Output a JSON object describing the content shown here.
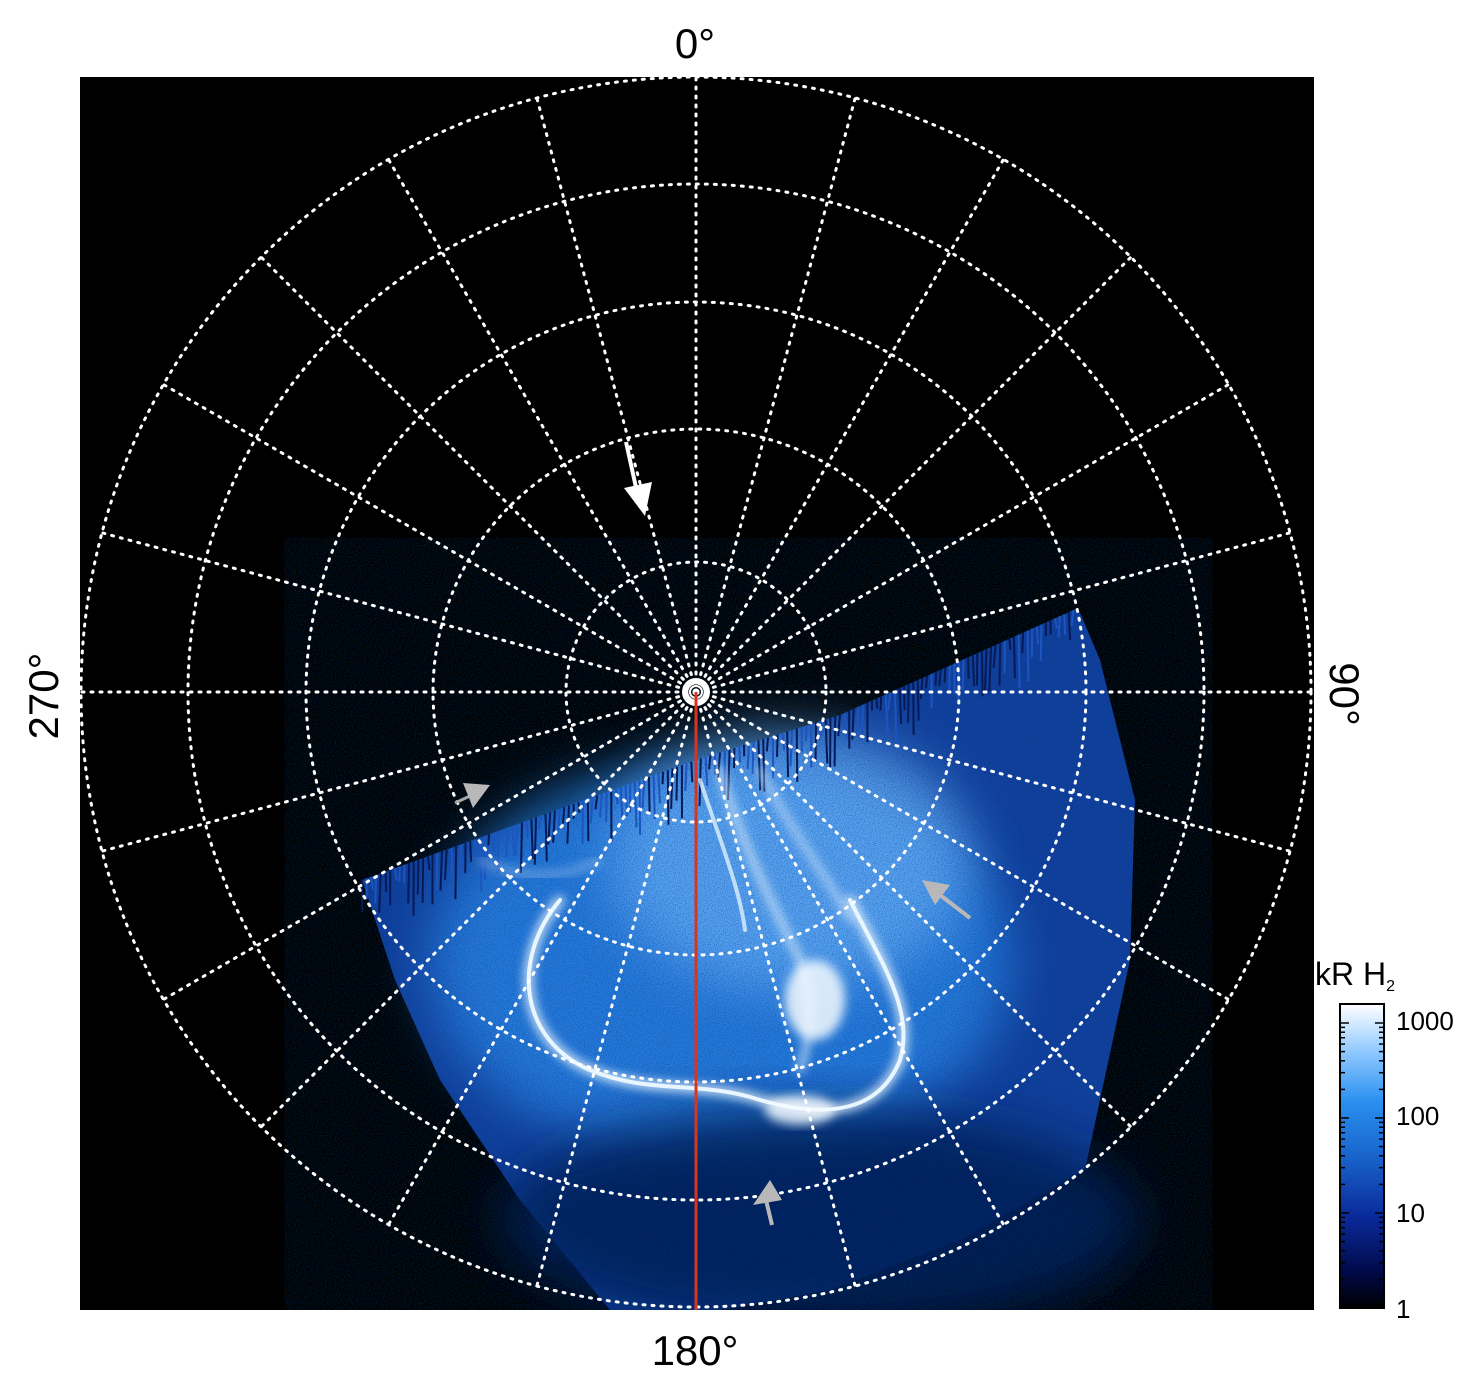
{
  "figure": {
    "orientation_labels": {
      "top": "0°",
      "bottom": "180°",
      "left": "270°",
      "right": "90°"
    },
    "colorbar": {
      "title_main": "kR H",
      "title_sub": "2",
      "ticks": [
        "1000",
        "100",
        "10",
        "1"
      ],
      "colors": [
        "#000000",
        "#000a4a",
        "#0a2a9a",
        "#1a6ad0",
        "#2a90f0",
        "#8ec8ff",
        "#ffffff"
      ]
    },
    "colors": {
      "background": "#000000",
      "grid": "#ffffff",
      "meridian_line": "#d9351e",
      "arrow_white": "#ffffff",
      "arrow_gray": "#b8b8b8",
      "aurora_dim": "#0b2a80",
      "aurora_mid": "#2a7ae6",
      "aurora_bright": "#e6f4ff"
    }
  }
}
